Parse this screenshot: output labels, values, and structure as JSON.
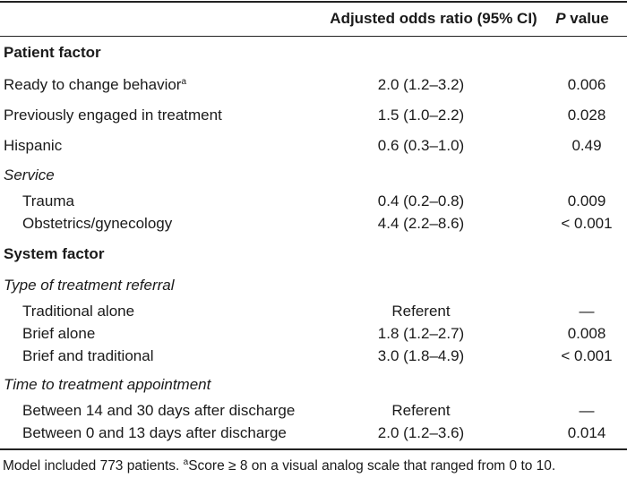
{
  "table": {
    "header": {
      "ratio": "Adjusted odds ratio (95% CI)",
      "p": {
        "italic": "P",
        "text": " value"
      }
    },
    "sections": [
      {
        "title": "Patient factor",
        "items": [
          {
            "label": "Ready to change behavior",
            "note": "a",
            "ratio": "2.0 (1.2–3.2)",
            "p": "0.006"
          },
          {
            "label": "Previously engaged in treatment",
            "ratio": "1.5 (1.0–2.2)",
            "p": "0.028"
          },
          {
            "label": "Hispanic",
            "ratio": "0.6 (0.3–1.0)",
            "p": "0.49"
          },
          {
            "title": "Service",
            "rows": [
              {
                "label": "Trauma",
                "ratio": "0.4 (0.2–0.8)",
                "p": "0.009"
              },
              {
                "label": "Obstetrics/gynecology",
                "ratio": "4.4 (2.2–8.6)",
                "p": "< 0.001"
              }
            ]
          }
        ]
      },
      {
        "title": "System factor",
        "items": [
          {
            "title": "Type of treatment referral",
            "rows": [
              {
                "label": "Traditional alone",
                "ratio": "Referent",
                "p": "—"
              },
              {
                "label": "Brief alone",
                "ratio": "1.8 (1.2–2.7)",
                "p": "0.008"
              },
              {
                "label": "Brief and traditional",
                "ratio": "3.0 (1.8–4.9)",
                "p": "< 0.001"
              }
            ]
          },
          {
            "title": "Time to treatment appointment",
            "rows": [
              {
                "label": "Between 14 and 30 days after discharge",
                "ratio": "Referent",
                "p": "—"
              },
              {
                "label": "Between 0 and 13 days after discharge",
                "ratio": "2.0 (1.2–3.6)",
                "p": "0.014"
              }
            ]
          }
        ]
      }
    ],
    "footnote": {
      "text": "Model included 773 patients. ",
      "note": "a",
      "detail": "Score ≥ 8 on a visual analog scale that ranged from 0 to 10."
    }
  }
}
